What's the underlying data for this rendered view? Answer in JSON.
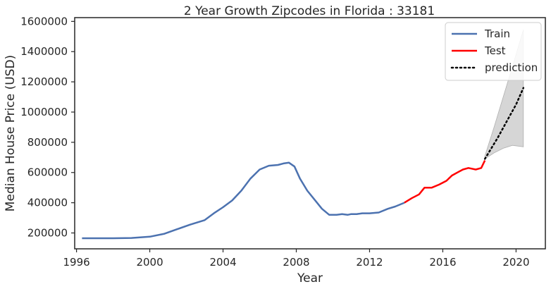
{
  "chart_data": {
    "type": "line",
    "title": "2 Year Growth Zipcodes in Florida : 33181",
    "xlabel": "Year",
    "ylabel": "Median House Price (USD)",
    "xlim": [
      1995.9,
      2021.6
    ],
    "ylim": [
      95000,
      1625000
    ],
    "x_ticks": [
      1996,
      2000,
      2004,
      2008,
      2012,
      2016,
      2020
    ],
    "x_tick_labels": [
      "1996",
      "2000",
      "2004",
      "2008",
      "2012",
      "2016",
      "2020"
    ],
    "y_ticks": [
      200000,
      400000,
      600000,
      800000,
      1000000,
      1200000,
      1400000,
      1600000
    ],
    "y_tick_labels": [
      "200000",
      "400000",
      "600000",
      "800000",
      "1000000",
      "1200000",
      "1400000",
      "1600000"
    ],
    "grid": false,
    "legend_position": "top-right",
    "series": [
      {
        "name": "Train",
        "color": "#4c72b0",
        "style": "solid",
        "x": [
          1996.3,
          1997.0,
          1998.0,
          1999.0,
          2000.0,
          2000.8,
          2001.5,
          2002.2,
          2003.0,
          2003.5,
          2004.0,
          2004.5,
          2005.0,
          2005.5,
          2006.0,
          2006.5,
          2007.0,
          2007.3,
          2007.6,
          2007.9,
          2008.2,
          2008.6,
          2009.0,
          2009.4,
          2009.8,
          2010.2,
          2010.5,
          2010.8,
          2011.0,
          2011.3,
          2011.6,
          2012.0,
          2012.5,
          2013.0,
          2013.4,
          2013.9
        ],
        "y": [
          165000,
          165000,
          165000,
          167000,
          175000,
          195000,
          225000,
          255000,
          285000,
          330000,
          370000,
          415000,
          480000,
          560000,
          620000,
          645000,
          650000,
          660000,
          665000,
          640000,
          560000,
          480000,
          420000,
          360000,
          320000,
          320000,
          325000,
          320000,
          325000,
          325000,
          330000,
          330000,
          335000,
          360000,
          375000,
          400000
        ]
      },
      {
        "name": "Test",
        "color": "#ff0000",
        "style": "solid",
        "x": [
          2013.9,
          2014.3,
          2014.7,
          2015.0,
          2015.4,
          2015.8,
          2016.2,
          2016.5,
          2016.8,
          2017.1,
          2017.4,
          2017.8,
          2018.1,
          2018.3
        ],
        "y": [
          400000,
          430000,
          455000,
          500000,
          500000,
          520000,
          545000,
          580000,
          600000,
          620000,
          630000,
          620000,
          630000,
          680000
        ]
      },
      {
        "name": "prediction",
        "color": "#000000",
        "style": "dotted",
        "x": [
          2018.3,
          2019.0,
          2019.5,
          2020.0,
          2020.4
        ],
        "y": [
          690000,
          830000,
          940000,
          1050000,
          1160000
        ]
      }
    ],
    "confidence_band": {
      "color": "#c8c8c8",
      "x": [
        2018.3,
        2018.8,
        2019.3,
        2019.8,
        2020.4
      ],
      "upper": [
        710000,
        900000,
        1100000,
        1300000,
        1545000
      ],
      "lower": [
        690000,
        730000,
        760000,
        780000,
        770000
      ]
    }
  }
}
